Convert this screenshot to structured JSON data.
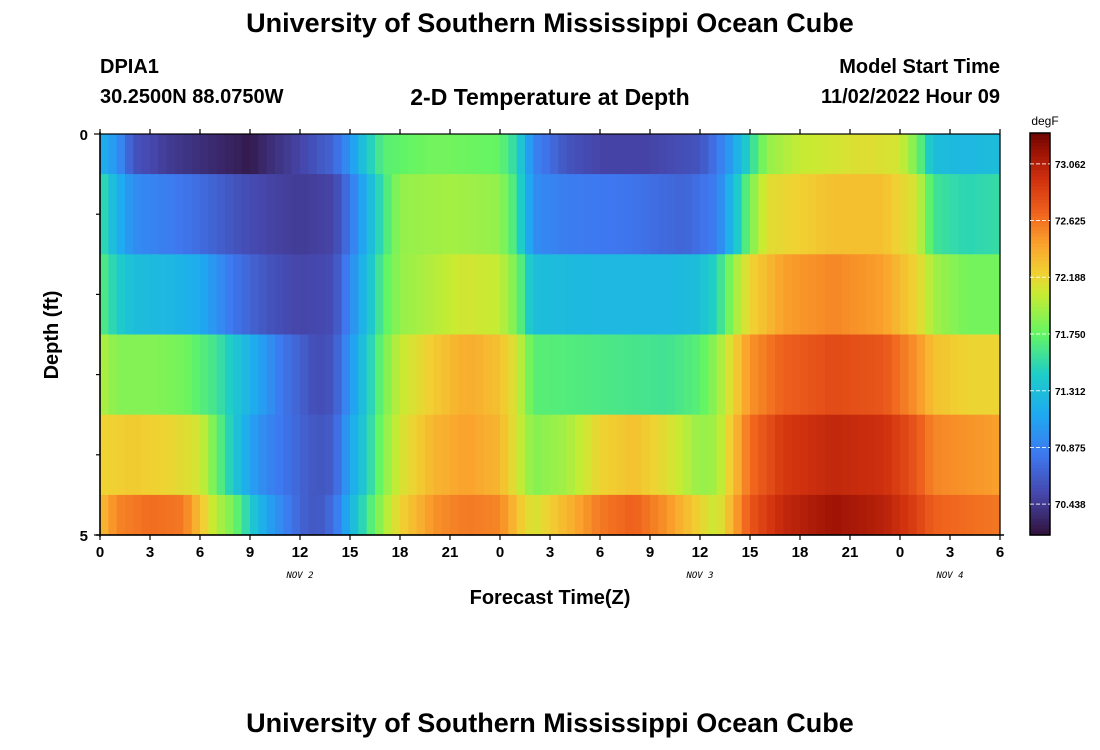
{
  "header": {
    "title_top": "University of Southern Mississippi Ocean Cube",
    "title_bottom": "University of Southern Mississippi Ocean Cube",
    "station": "DPIA1",
    "coordinates": "30.2500N  88.0750W",
    "subtitle": "2-D Temperature at Depth",
    "model_start_label": "Model Start Time",
    "model_start_value": "11/02/2022 Hour 09"
  },
  "chart_data": {
    "type": "heatmap",
    "title": "2-D Temperature at Depth",
    "xlabel": "Forecast Time(Z)",
    "ylabel": "Depth (ft)",
    "x_tick_labels": [
      "0",
      "3",
      "6",
      "9",
      "12",
      "15",
      "18",
      "21",
      "0",
      "3",
      "6",
      "9",
      "12",
      "15",
      "18",
      "21",
      "0",
      "3",
      "6"
    ],
    "x_range_hours": [
      0,
      54
    ],
    "date_labels": [
      {
        "label": "NOV 2",
        "hour": 12
      },
      {
        "label": "NOV 3",
        "hour": 36
      },
      {
        "label": "NOV 4",
        "hour": 51
      }
    ],
    "y_tick_labels": [
      "0",
      "5"
    ],
    "ylim": [
      0,
      5
    ],
    "y_inverted": true,
    "colorbar": {
      "unit": "degF",
      "ticks": [
        "73.062",
        "72.625",
        "72.188",
        "71.750",
        "71.312",
        "70.875",
        "70.438"
      ],
      "range": [
        70.2,
        73.3
      ]
    },
    "depth_layers": [
      {
        "depth_range": [
          0,
          0.5
        ],
        "keyframes": [
          [
            0,
            71.2
          ],
          [
            1,
            71.0
          ],
          [
            2,
            70.6
          ],
          [
            4,
            70.45
          ],
          [
            8,
            70.3
          ],
          [
            9,
            70.25
          ],
          [
            10,
            70.35
          ],
          [
            12,
            70.5
          ],
          [
            14,
            70.7
          ],
          [
            15,
            71.0
          ],
          [
            16,
            71.4
          ],
          [
            17,
            71.7
          ],
          [
            20,
            71.8
          ],
          [
            24,
            71.75
          ],
          [
            25,
            71.5
          ],
          [
            26,
            70.9
          ],
          [
            28,
            70.6
          ],
          [
            30,
            70.5
          ],
          [
            33,
            70.5
          ],
          [
            36,
            70.6
          ],
          [
            37,
            70.8
          ],
          [
            38,
            71.1
          ],
          [
            39,
            71.5
          ],
          [
            40,
            71.9
          ],
          [
            42,
            72.05
          ],
          [
            46,
            72.15
          ],
          [
            48,
            72.1
          ],
          [
            49,
            71.8
          ],
          [
            50,
            71.3
          ],
          [
            52,
            71.25
          ],
          [
            54,
            71.3
          ]
        ]
      },
      {
        "depth_range": [
          0.5,
          1.5
        ],
        "keyframes": [
          [
            0,
            71.6
          ],
          [
            1,
            71.2
          ],
          [
            2,
            70.95
          ],
          [
            4,
            70.85
          ],
          [
            6,
            70.75
          ],
          [
            8,
            70.6
          ],
          [
            10,
            70.5
          ],
          [
            12,
            70.45
          ],
          [
            14,
            70.5
          ],
          [
            15,
            70.8
          ],
          [
            16,
            71.2
          ],
          [
            17,
            71.6
          ],
          [
            18,
            71.9
          ],
          [
            21,
            71.95
          ],
          [
            24,
            71.9
          ],
          [
            25,
            71.6
          ],
          [
            26,
            70.95
          ],
          [
            28,
            70.85
          ],
          [
            32,
            70.8
          ],
          [
            35,
            70.7
          ],
          [
            37,
            70.85
          ],
          [
            38,
            71.3
          ],
          [
            39,
            71.8
          ],
          [
            40,
            72.15
          ],
          [
            44,
            72.3
          ],
          [
            47,
            72.3
          ],
          [
            49,
            72.1
          ],
          [
            50,
            71.6
          ],
          [
            52,
            71.5
          ],
          [
            54,
            71.55
          ]
        ]
      },
      {
        "depth_range": [
          1.5,
          2.5
        ],
        "keyframes": [
          [
            0,
            71.7
          ],
          [
            1,
            71.45
          ],
          [
            2,
            71.3
          ],
          [
            4,
            71.25
          ],
          [
            6,
            71.15
          ],
          [
            8,
            70.8
          ],
          [
            10,
            70.6
          ],
          [
            12,
            70.5
          ],
          [
            14,
            70.55
          ],
          [
            15,
            70.9
          ],
          [
            16,
            71.3
          ],
          [
            17,
            71.7
          ],
          [
            18,
            71.9
          ],
          [
            20,
            72.0
          ],
          [
            22,
            72.1
          ],
          [
            24,
            72.05
          ],
          [
            25,
            71.8
          ],
          [
            26,
            71.3
          ],
          [
            30,
            71.25
          ],
          [
            34,
            71.25
          ],
          [
            36,
            71.3
          ],
          [
            37,
            71.5
          ],
          [
            38,
            71.9
          ],
          [
            39,
            72.2
          ],
          [
            41,
            72.45
          ],
          [
            44,
            72.55
          ],
          [
            47,
            72.45
          ],
          [
            49,
            72.2
          ],
          [
            50,
            71.95
          ],
          [
            52,
            71.8
          ],
          [
            54,
            71.8
          ]
        ]
      },
      {
        "depth_range": [
          2.5,
          3.5
        ],
        "keyframes": [
          [
            0,
            72.0
          ],
          [
            1,
            71.85
          ],
          [
            3,
            71.85
          ],
          [
            5,
            71.8
          ],
          [
            7,
            71.6
          ],
          [
            9,
            71.2
          ],
          [
            11,
            70.8
          ],
          [
            13,
            70.55
          ],
          [
            14,
            70.6
          ],
          [
            15,
            71.0
          ],
          [
            16,
            71.4
          ],
          [
            17,
            71.8
          ],
          [
            18,
            72.05
          ],
          [
            20,
            72.25
          ],
          [
            22,
            72.4
          ],
          [
            24,
            72.3
          ],
          [
            25,
            72.1
          ],
          [
            26,
            71.7
          ],
          [
            30,
            71.65
          ],
          [
            34,
            71.6
          ],
          [
            36,
            71.7
          ],
          [
            37,
            71.9
          ],
          [
            38,
            72.2
          ],
          [
            39,
            72.5
          ],
          [
            41,
            72.7
          ],
          [
            44,
            72.8
          ],
          [
            47,
            72.75
          ],
          [
            49,
            72.5
          ],
          [
            50,
            72.3
          ],
          [
            52,
            72.2
          ],
          [
            54,
            72.2
          ]
        ]
      },
      {
        "depth_range": [
          3.5,
          4.5
        ],
        "keyframes": [
          [
            0,
            72.2
          ],
          [
            2,
            72.25
          ],
          [
            4,
            72.2
          ],
          [
            6,
            72.1
          ],
          [
            7,
            71.75
          ],
          [
            8,
            71.4
          ],
          [
            9,
            71.1
          ],
          [
            10,
            70.9
          ],
          [
            12,
            70.7
          ],
          [
            13,
            70.6
          ],
          [
            14,
            70.65
          ],
          [
            15,
            71.1
          ],
          [
            16,
            71.45
          ],
          [
            17,
            71.85
          ],
          [
            18,
            72.1
          ],
          [
            20,
            72.35
          ],
          [
            22,
            72.45
          ],
          [
            24,
            72.35
          ],
          [
            25,
            72.1
          ],
          [
            26,
            71.85
          ],
          [
            28,
            71.95
          ],
          [
            30,
            72.2
          ],
          [
            32,
            72.3
          ],
          [
            34,
            72.15
          ],
          [
            36,
            71.9
          ],
          [
            37,
            71.95
          ],
          [
            38,
            72.3
          ],
          [
            39,
            72.65
          ],
          [
            41,
            72.9
          ],
          [
            44,
            73.0
          ],
          [
            47,
            72.95
          ],
          [
            49,
            72.75
          ],
          [
            50,
            72.55
          ],
          [
            52,
            72.5
          ],
          [
            54,
            72.45
          ]
        ]
      },
      {
        "depth_range": [
          4.5,
          5.0
        ],
        "keyframes": [
          [
            0,
            72.3
          ],
          [
            1,
            72.55
          ],
          [
            3,
            72.65
          ],
          [
            5,
            72.6
          ],
          [
            6,
            72.3
          ],
          [
            7,
            72.0
          ],
          [
            8,
            71.8
          ],
          [
            9,
            71.45
          ],
          [
            10,
            71.1
          ],
          [
            12,
            70.7
          ],
          [
            13,
            70.6
          ],
          [
            14,
            70.75
          ],
          [
            15,
            71.2
          ],
          [
            16,
            71.6
          ],
          [
            17,
            71.95
          ],
          [
            18,
            72.2
          ],
          [
            20,
            72.5
          ],
          [
            22,
            72.6
          ],
          [
            24,
            72.55
          ],
          [
            25,
            72.3
          ],
          [
            26,
            72.1
          ],
          [
            28,
            72.35
          ],
          [
            30,
            72.6
          ],
          [
            32,
            72.7
          ],
          [
            34,
            72.5
          ],
          [
            36,
            72.2
          ],
          [
            37,
            72.05
          ],
          [
            38,
            72.4
          ],
          [
            39,
            72.75
          ],
          [
            41,
            73.0
          ],
          [
            44,
            73.15
          ],
          [
            47,
            73.05
          ],
          [
            49,
            72.85
          ],
          [
            50,
            72.7
          ],
          [
            52,
            72.65
          ],
          [
            54,
            72.6
          ]
        ]
      }
    ]
  }
}
